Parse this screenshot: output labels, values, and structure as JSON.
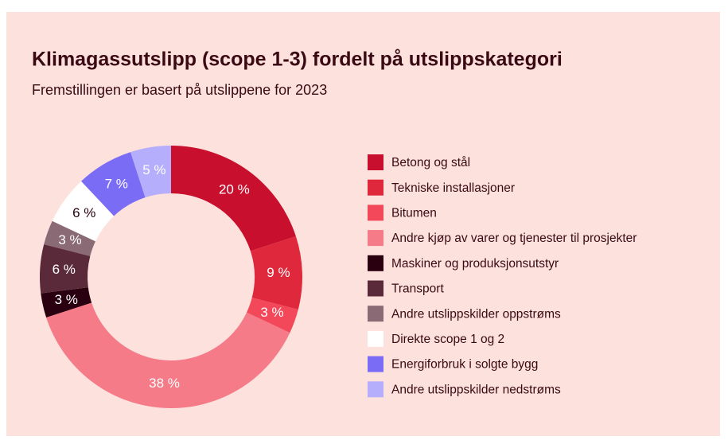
{
  "chart_data": {
    "type": "donut",
    "title": "Klimagassutslipp (scope 1-3) fordelt på utslippskategori",
    "subtitle": "Fremstillingen er basert på utslippene for 2023",
    "categories": [
      "Betong og stål",
      "Tekniske installasjoner",
      "Bitumen",
      "Andre kjøp av varer og tjenester til prosjekter",
      "Maskiner og produksjonsutstyr",
      "Transport",
      "Andre utslippskilder oppstrøms",
      "Direkte scope 1 og 2",
      "Energiforbruk i solgte bygg",
      "Andre utslippskilder nedstrøms"
    ],
    "values": [
      20,
      9,
      3,
      38,
      3,
      6,
      3,
      6,
      7,
      5
    ],
    "value_labels": [
      "20 %",
      "9 %",
      "3 %",
      "38 %",
      "3 %",
      "6 %",
      "3 %",
      "6 %",
      "7 %",
      "5 %"
    ],
    "colors": [
      "#c8102e",
      "#e0283c",
      "#f2485a",
      "#f47b87",
      "#2a0010",
      "#5a2a3a",
      "#8a6b75",
      "#ffffff",
      "#7b6cf6",
      "#b4aefc"
    ],
    "legend": "right"
  }
}
